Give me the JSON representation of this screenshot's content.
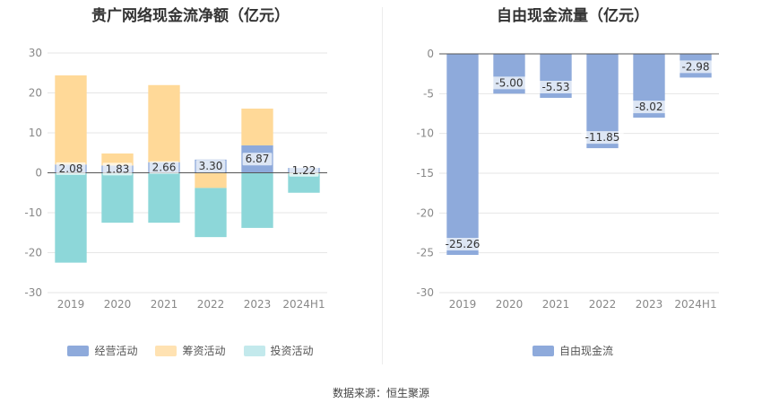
{
  "source_note": "数据来源：恒生聚源",
  "chart_data": [
    {
      "type": "bar",
      "stacked": true,
      "title": "贵广网络现金流净额（亿元）",
      "categories": [
        "2019",
        "2020",
        "2021",
        "2022",
        "2023",
        "2024H1"
      ],
      "ylim": [
        -30,
        30
      ],
      "yticks": [
        30,
        20,
        10,
        0,
        -10,
        -20,
        -30
      ],
      "grid": true,
      "legend_position": "bottom",
      "series": [
        {
          "name": "经营活动",
          "color": "#8eaadb",
          "values": [
            2.08,
            1.83,
            2.66,
            3.3,
            6.87,
            1.22
          ],
          "labels": [
            "2.08",
            "1.83",
            "2.66",
            "3.30",
            "6.87",
            "1.22"
          ]
        },
        {
          "name": "筹资活动",
          "color": "#ffd998",
          "values": [
            22.3,
            3.0,
            19.3,
            -3.8,
            9.2,
            -0.2
          ]
        },
        {
          "name": "投资活动",
          "color": "#8dd7d9",
          "values": [
            -22.5,
            -12.5,
            -12.5,
            -12.3,
            -13.8,
            -4.8
          ]
        }
      ],
      "legend": [
        {
          "name": "经营活动",
          "color": "#8eaadb"
        },
        {
          "name": "筹资活动",
          "color": "#ffe2b2"
        },
        {
          "name": "投资活动",
          "color": "#c3e9ec"
        }
      ]
    },
    {
      "type": "bar",
      "title": "自由现金流量（亿元）",
      "categories": [
        "2019",
        "2020",
        "2021",
        "2022",
        "2023",
        "2024H1"
      ],
      "ylim": [
        -30,
        0
      ],
      "yticks": [
        0,
        -5,
        -10,
        -15,
        -20,
        -25,
        -30
      ],
      "grid": true,
      "legend_position": "bottom",
      "series": [
        {
          "name": "自由现金流",
          "color": "#8eaadb",
          "values": [
            -25.26,
            -5.0,
            -5.53,
            -11.85,
            -8.02,
            -2.98
          ],
          "labels": [
            "-25.26",
            "-5.00",
            "-5.53",
            "-11.85",
            "-8.02",
            "-2.98"
          ]
        }
      ],
      "legend": [
        {
          "name": "自由现金流",
          "color": "#8eaadb"
        }
      ]
    }
  ]
}
